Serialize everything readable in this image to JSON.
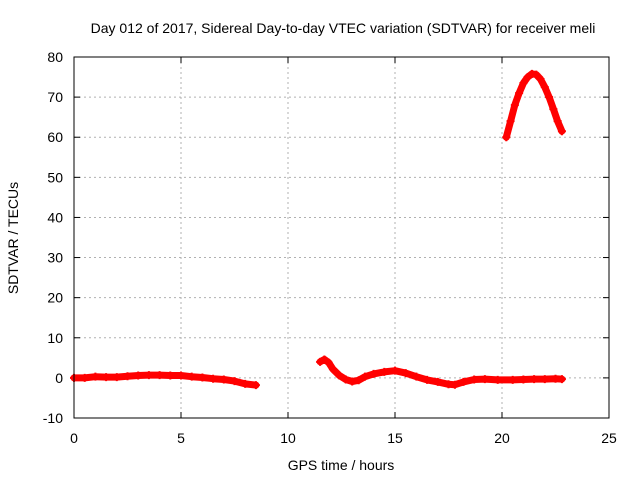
{
  "chart_data": {
    "type": "line",
    "title": "Day 012 of 2017, Sidereal Day-to-day VTEC variation (SDTVAR) for receiver meli",
    "xlabel": "GPS time / hours",
    "ylabel": "SDTVAR / TECUs",
    "xlim": [
      0,
      25
    ],
    "ylim": [
      -10,
      80
    ],
    "xticks": [
      0,
      5,
      10,
      15,
      20,
      25
    ],
    "yticks": [
      -10,
      0,
      10,
      20,
      30,
      40,
      50,
      60,
      70,
      80
    ],
    "grid": true,
    "color": "#ff0000",
    "series": [
      {
        "name": "segment-1",
        "points": [
          [
            0,
            0
          ],
          [
            0.5,
            0
          ],
          [
            1,
            0.3
          ],
          [
            1.5,
            0.2
          ],
          [
            2,
            0.2
          ],
          [
            2.5,
            0.4
          ],
          [
            3,
            0.6
          ],
          [
            3.5,
            0.7
          ],
          [
            4,
            0.7
          ],
          [
            4.5,
            0.6
          ],
          [
            5,
            0.6
          ],
          [
            5.5,
            0.3
          ],
          [
            6,
            0.1
          ],
          [
            6.5,
            -0.2
          ],
          [
            7,
            -0.4
          ],
          [
            7.5,
            -0.8
          ],
          [
            8,
            -1.5
          ],
          [
            8.5,
            -1.8
          ]
        ]
      },
      {
        "name": "segment-2",
        "points": [
          [
            11.5,
            4
          ],
          [
            11.7,
            4.6
          ],
          [
            11.9,
            3.8
          ],
          [
            12.1,
            2.2
          ],
          [
            12.4,
            0.6
          ],
          [
            12.7,
            -0.4
          ],
          [
            13,
            -0.9
          ],
          [
            13.3,
            -0.6
          ],
          [
            13.6,
            0.3
          ],
          [
            14,
            1.0
          ],
          [
            14.5,
            1.5
          ],
          [
            15,
            1.8
          ],
          [
            15.5,
            1.2
          ],
          [
            16,
            0.3
          ],
          [
            16.5,
            -0.5
          ],
          [
            17,
            -1.0
          ],
          [
            17.5,
            -1.6
          ],
          [
            17.8,
            -1.7
          ],
          [
            18.2,
            -1.0
          ],
          [
            18.7,
            -0.4
          ],
          [
            19.2,
            -0.3
          ],
          [
            19.8,
            -0.5
          ],
          [
            20.5,
            -0.5
          ],
          [
            21,
            -0.4
          ],
          [
            21.5,
            -0.3
          ],
          [
            22,
            -0.3
          ],
          [
            22.5,
            -0.2
          ],
          [
            22.8,
            -0.3
          ]
        ]
      },
      {
        "name": "segment-3",
        "points": [
          [
            20.2,
            60
          ],
          [
            20.4,
            64
          ],
          [
            20.6,
            68
          ],
          [
            20.8,
            71
          ],
          [
            21.0,
            73.5
          ],
          [
            21.2,
            75
          ],
          [
            21.4,
            75.8
          ],
          [
            21.6,
            75.6
          ],
          [
            21.8,
            74.5
          ],
          [
            22.0,
            72.5
          ],
          [
            22.2,
            70
          ],
          [
            22.4,
            67
          ],
          [
            22.6,
            64
          ],
          [
            22.8,
            61.5
          ]
        ]
      }
    ]
  }
}
